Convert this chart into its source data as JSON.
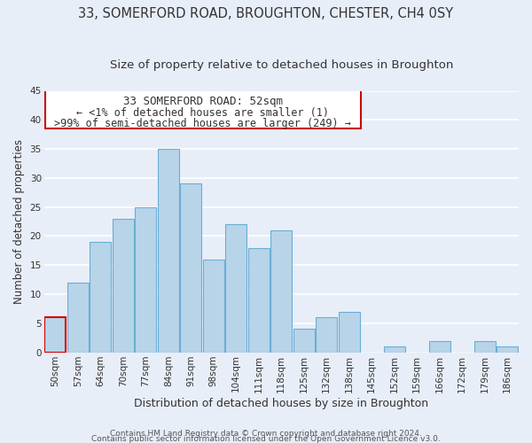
{
  "title": "33, SOMERFORD ROAD, BROUGHTON, CHESTER, CH4 0SY",
  "subtitle": "Size of property relative to detached houses in Broughton",
  "xlabel": "Distribution of detached houses by size in Broughton",
  "ylabel": "Number of detached properties",
  "bar_labels": [
    "50sqm",
    "57sqm",
    "64sqm",
    "70sqm",
    "77sqm",
    "84sqm",
    "91sqm",
    "98sqm",
    "104sqm",
    "111sqm",
    "118sqm",
    "125sqm",
    "132sqm",
    "138sqm",
    "145sqm",
    "152sqm",
    "159sqm",
    "166sqm",
    "172sqm",
    "179sqm",
    "186sqm"
  ],
  "bar_values": [
    6,
    12,
    19,
    23,
    25,
    35,
    29,
    16,
    22,
    18,
    21,
    4,
    6,
    7,
    0,
    1,
    0,
    2,
    0,
    2,
    1
  ],
  "bar_color": "#b8d4e8",
  "bar_edge_color": "#6aaed6",
  "highlight_bar_index": 0,
  "highlight_bar_edge_color": "#cc0000",
  "ylim": [
    0,
    45
  ],
  "yticks": [
    0,
    5,
    10,
    15,
    20,
    25,
    30,
    35,
    40,
    45
  ],
  "annotation_title": "33 SOMERFORD ROAD: 52sqm",
  "annotation_line1": "← <1% of detached houses are smaller (1)",
  "annotation_line2": ">99% of semi-detached houses are larger (249) →",
  "annotation_box_edge_color": "#cc0000",
  "footer_line1": "Contains HM Land Registry data © Crown copyright and database right 2024.",
  "footer_line2": "Contains public sector information licensed under the Open Government Licence v3.0.",
  "background_color": "#e8eef8",
  "grid_color": "#ffffff",
  "title_fontsize": 10.5,
  "subtitle_fontsize": 9.5,
  "xlabel_fontsize": 9,
  "ylabel_fontsize": 8.5,
  "tick_fontsize": 7.5,
  "footer_fontsize": 6.5,
  "annotation_title_fontsize": 9,
  "annotation_text_fontsize": 8.5
}
